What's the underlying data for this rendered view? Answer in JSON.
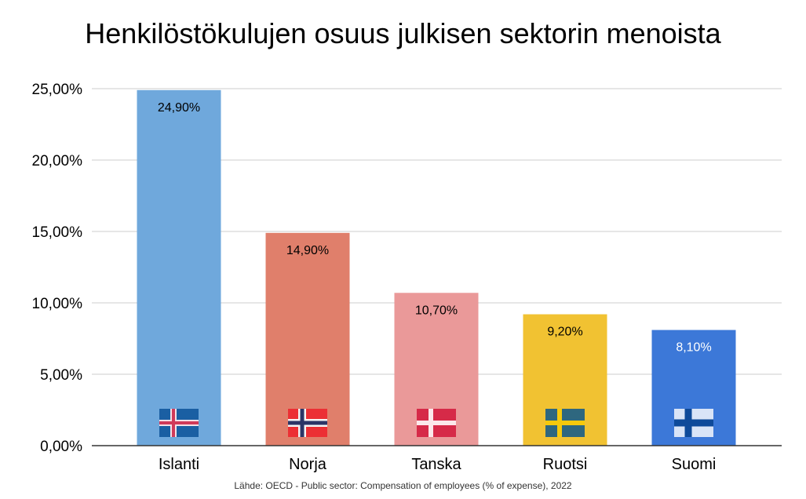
{
  "chart_data": {
    "type": "bar",
    "title": "Henkilöstökulujen osuus julkisen sektorin menoista",
    "categories": [
      "Islanti",
      "Norja",
      "Tanska",
      "Ruotsi",
      "Suomi"
    ],
    "values": [
      24.9,
      14.9,
      10.7,
      9.2,
      8.1
    ],
    "data_labels": [
      "24,90%",
      "14,90%",
      "10,70%",
      "9,20%",
      "8,10%"
    ],
    "colors": [
      "#6fa8dc",
      "#e07f6b",
      "#ea9999",
      "#f1c232",
      "#3c78d8"
    ],
    "label_colors": [
      "#000000",
      "#000000",
      "#000000",
      "#000000",
      "#ffffff"
    ],
    "flags": [
      "iceland-flag",
      "norway-flag",
      "denmark-flag",
      "sweden-flag",
      "finland-flag"
    ],
    "ylim": [
      0,
      25
    ],
    "yticks": [
      0,
      5,
      10,
      15,
      20,
      25
    ],
    "ytick_labels": [
      "0,00%",
      "5,00%",
      "10,00%",
      "15,00%",
      "20,00%",
      "25,00%"
    ],
    "grid": true,
    "xlabel": "",
    "ylabel": "",
    "source": "Lähde: OECD - Public sector: Compensation of employees (% of expense), 2022"
  }
}
